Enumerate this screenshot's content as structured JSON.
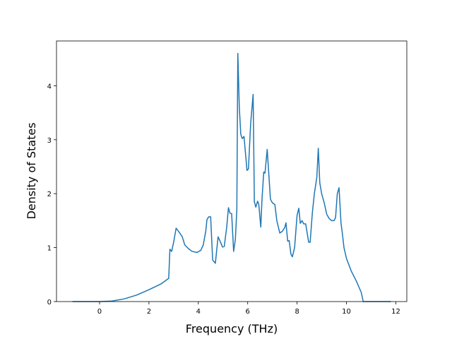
{
  "chart_data": {
    "type": "line",
    "xlabel": "Frequency (THz)",
    "ylabel": "Density of States",
    "x": [
      -1.1,
      0,
      0.5,
      1,
      1.5,
      2,
      2.5,
      2.8,
      2.85,
      2.92,
      3.0,
      3.1,
      3.25,
      3.35,
      3.45,
      3.6,
      3.75,
      3.95,
      4.1,
      4.2,
      4.3,
      4.35,
      4.42,
      4.5,
      4.58,
      4.69,
      4.8,
      4.9,
      4.98,
      5.05,
      5.15,
      5.22,
      5.28,
      5.35,
      5.43,
      5.5,
      5.56,
      5.6,
      5.66,
      5.72,
      5.78,
      5.85,
      5.92,
      5.97,
      6.03,
      6.12,
      6.22,
      6.27,
      6.33,
      6.4,
      6.45,
      6.53,
      6.58,
      6.65,
      6.7,
      6.79,
      6.85,
      6.92,
      7.0,
      7.1,
      7.18,
      7.3,
      7.4,
      7.5,
      7.55,
      7.62,
      7.68,
      7.75,
      7.81,
      7.9,
      8.0,
      8.07,
      8.13,
      8.2,
      8.27,
      8.35,
      8.47,
      8.53,
      8.62,
      8.7,
      8.8,
      8.86,
      8.92,
      9.0,
      9.1,
      9.2,
      9.3,
      9.4,
      9.5,
      9.56,
      9.63,
      9.7,
      9.78,
      9.83,
      9.9,
      10.0,
      10.2,
      10.4,
      10.6,
      10.68,
      11.8
    ],
    "series": [
      {
        "name": "DOS",
        "color": "#1f77b4",
        "values": [
          0,
          0,
          0.01,
          0.05,
          0.12,
          0.22,
          0.33,
          0.43,
          0.97,
          0.93,
          1.1,
          1.36,
          1.27,
          1.2,
          1.05,
          0.98,
          0.93,
          0.91,
          0.95,
          1.05,
          1.3,
          1.52,
          1.57,
          1.57,
          0.77,
          0.71,
          1.2,
          1.1,
          1.01,
          1.02,
          1.38,
          1.74,
          1.64,
          1.63,
          0.93,
          1.15,
          1.7,
          4.6,
          3.6,
          3.1,
          3.02,
          3.06,
          2.7,
          2.43,
          2.46,
          3.3,
          3.84,
          1.85,
          1.75,
          1.86,
          1.8,
          1.38,
          1.9,
          2.4,
          2.38,
          2.82,
          2.4,
          1.9,
          1.83,
          1.8,
          1.5,
          1.27,
          1.3,
          1.37,
          1.46,
          1.12,
          1.13,
          0.88,
          0.83,
          1.0,
          1.6,
          1.73,
          1.45,
          1.5,
          1.44,
          1.44,
          1.1,
          1.1,
          1.65,
          2.0,
          2.3,
          2.84,
          2.2,
          1.99,
          1.83,
          1.62,
          1.54,
          1.5,
          1.5,
          1.56,
          2.0,
          2.11,
          1.45,
          1.28,
          1.0,
          0.8,
          0.56,
          0.38,
          0.17,
          0,
          0
        ]
      }
    ],
    "xlim": [
      -1.745,
      12.445
    ],
    "ylim": [
      0,
      4.83
    ],
    "xticks": [
      0,
      2,
      4,
      6,
      8,
      10,
      12
    ],
    "yticks": [
      0,
      1,
      2,
      3,
      4
    ]
  }
}
